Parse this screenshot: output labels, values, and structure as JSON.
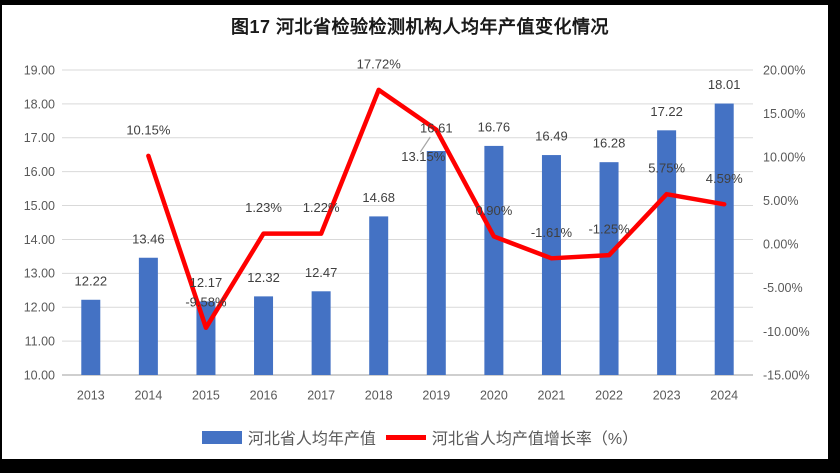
{
  "title": "图17 河北省检验检测机构人均年产值变化情况",
  "colors": {
    "bar": "#4472C4",
    "line": "#FF0000",
    "gridline": "#D9D9D9",
    "axis_line": "#BFBFBF",
    "axis_text": "#595959",
    "data_label": "#404040",
    "title_text": "#1A1A1A",
    "leader_line": "#A6A6A6",
    "frame": "#000000"
  },
  "chart_data": {
    "type": "combo_bar_line",
    "title": "图17 河北省检验检测机构人均年产值变化情况",
    "categories": [
      "2013",
      "2014",
      "2015",
      "2016",
      "2017",
      "2018",
      "2019",
      "2020",
      "2021",
      "2022",
      "2023",
      "2024"
    ],
    "series": [
      {
        "name": "河北省人均年产值",
        "type": "bar",
        "axis": "left",
        "color": "#4472C4",
        "values": [
          12.22,
          13.46,
          12.17,
          12.32,
          12.47,
          14.68,
          16.61,
          16.76,
          16.49,
          16.28,
          17.22,
          18.01
        ],
        "labels": [
          "12.22",
          "13.46",
          "12.17",
          "12.32",
          "12.47",
          "14.68",
          "16.61",
          "16.76",
          "16.49",
          "16.28",
          "17.22",
          "18.01"
        ]
      },
      {
        "name": "河北省人均产值增长率（%）",
        "type": "line",
        "axis": "right",
        "color": "#FF0000",
        "values": [
          null,
          10.15,
          -9.58,
          1.23,
          1.22,
          17.72,
          13.15,
          0.9,
          -1.61,
          -1.25,
          5.75,
          4.59
        ],
        "labels": [
          null,
          "10.15%",
          "-9.58%",
          "1.23%",
          "1.22%",
          "17.72%",
          "13.15%",
          "0.90%",
          "-1.61%",
          "-1.25%",
          "5.75%",
          "4.59%"
        ]
      }
    ],
    "left_axis": {
      "min": 10,
      "max": 19,
      "step": 1,
      "ticks": [
        "19.00",
        "18.00",
        "17.00",
        "16.00",
        "15.00",
        "14.00",
        "13.00",
        "12.00",
        "11.00",
        "10.00"
      ]
    },
    "right_axis": {
      "min": -15,
      "max": 20,
      "step": 5,
      "ticks": [
        "20.00%",
        "15.00%",
        "10.00%",
        "5.00%",
        "0.00%",
        "-5.00%",
        "-10.00%",
        "-15.00%"
      ]
    },
    "grid": true,
    "legend_position": "bottom",
    "legend": [
      "河北省人均年产值",
      "河北省人均产值增长率（%）"
    ]
  }
}
